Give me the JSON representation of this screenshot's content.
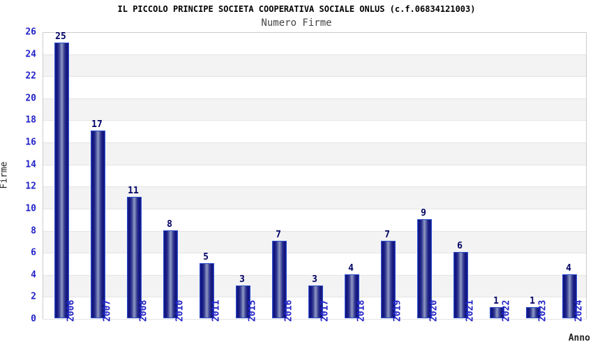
{
  "title": "IL PICCOLO PRINCIPE SOCIETA COOPERATIVA SOCIALE ONLUS (c.f.06834121003)",
  "subtitle": "Numero Firme",
  "chart_data": {
    "type": "bar",
    "title": "IL PICCOLO PRINCIPE SOCIETA COOPERATIVA SOCIALE ONLUS (c.f.06834121003)",
    "subtitle": "Numero Firme",
    "categories": [
      "2006",
      "2007",
      "2008",
      "2010",
      "2011",
      "2015",
      "2016",
      "2017",
      "2018",
      "2019",
      "2020",
      "2021",
      "2022",
      "2023",
      "2024"
    ],
    "values": [
      25,
      17,
      11,
      8,
      5,
      3,
      7,
      3,
      4,
      7,
      9,
      6,
      1,
      1,
      4
    ],
    "xlabel": "Anno",
    "ylabel": "Firme",
    "ylim": [
      0,
      26
    ],
    "yticks": [
      0,
      2,
      4,
      6,
      8,
      10,
      12,
      14,
      16,
      18,
      20,
      22,
      24,
      26
    ],
    "grid": "horizontal-alternating-bands",
    "legend": "none",
    "value_labels": "above-bars",
    "x_tick_rotation": "vertical-bottom-to-top"
  },
  "colors": {
    "tick_label": "#2323c8",
    "value_label": "#000064",
    "bar_border": "#2b50cc",
    "bar_dark": "#11137b",
    "bar_light": "#9099c2",
    "band_gray": "#f3f3f3",
    "band_white": "#ffffff",
    "plot_border": "#cccccc",
    "title_color": "#000000",
    "subtitle_color": "#444444",
    "axis_title_color": "#222222"
  }
}
